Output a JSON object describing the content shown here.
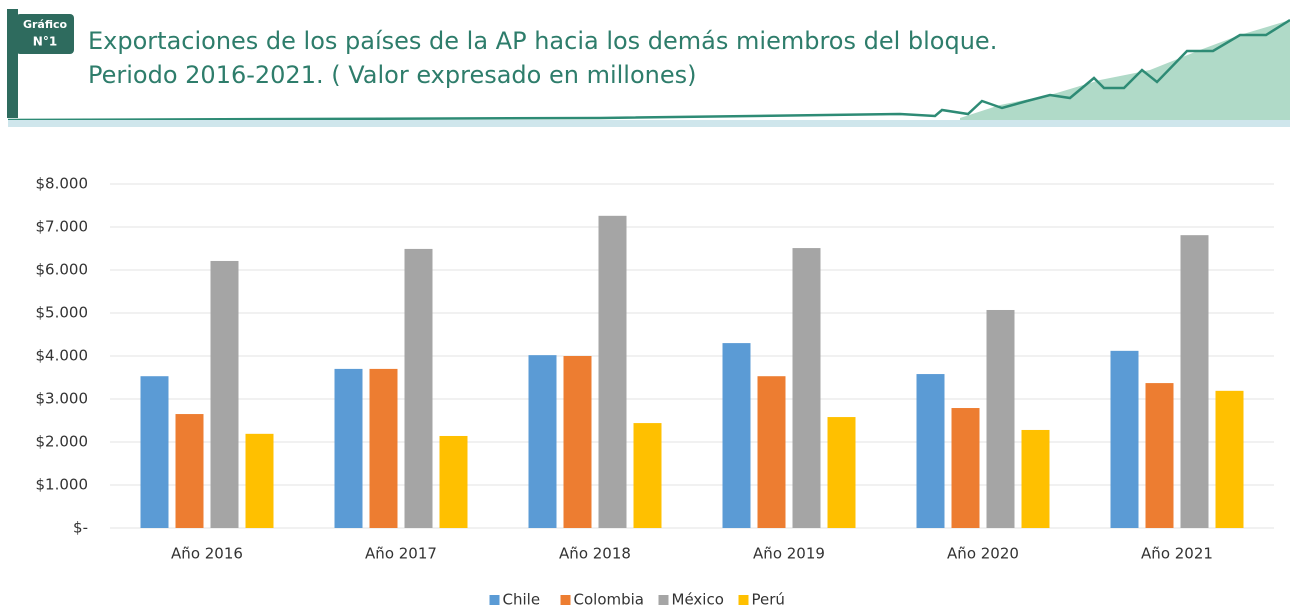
{
  "badge": [
    "Gráfico",
    "N°1"
  ],
  "chart_data": {
    "type": "bar",
    "title": "Exportaciones de los países de la AP hacia los demás miembros del bloque.",
    "subtitle": "Periodo 2016-2021.  ( Valor expresado en millones)",
    "categories": [
      "Año 2016",
      "Año 2017",
      "Año 2018",
      "Año 2019",
      "Año 2020",
      "Año 2021"
    ],
    "series": [
      {
        "name": "Chile",
        "color": "#5b9bd5",
        "values": [
          3530,
          3700,
          4020,
          4300,
          3580,
          4120
        ]
      },
      {
        "name": "Colombia",
        "color": "#ed7d31",
        "values": [
          2650,
          3700,
          4000,
          3530,
          2790,
          3370
        ]
      },
      {
        "name": "México",
        "color": "#a5a5a5",
        "values": [
          6210,
          6490,
          7260,
          6510,
          5070,
          6810
        ]
      },
      {
        "name": "Perú",
        "color": "#ffc000",
        "values": [
          2190,
          2140,
          2440,
          2580,
          2280,
          3190
        ]
      }
    ],
    "ylim": [
      0,
      8000
    ],
    "yticks": [
      {
        "value": 0,
        "label": "$-"
      },
      {
        "value": 1000,
        "label": "$1.000"
      },
      {
        "value": 2000,
        "label": "$2.000"
      },
      {
        "value": 3000,
        "label": "$3.000"
      },
      {
        "value": 4000,
        "label": "$4.000"
      },
      {
        "value": 5000,
        "label": "$5.000"
      },
      {
        "value": 6000,
        "label": "$6.000"
      },
      {
        "value": 7000,
        "label": "$7.000"
      },
      {
        "value": 8000,
        "label": "$8.000"
      }
    ],
    "grid": true,
    "legend": "bottom"
  }
}
